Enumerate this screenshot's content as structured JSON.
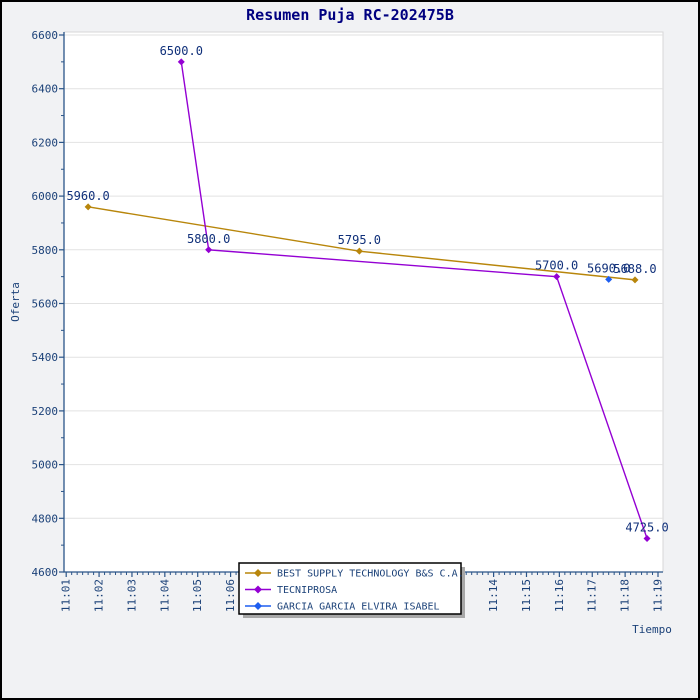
{
  "colors": {
    "background": "#f1f2f4",
    "plot_background": "#ffffff",
    "plot_border": "#d7d7d7",
    "grid": "#e2e2e2",
    "axis": "#2a5488",
    "tick_text": "#1b4178",
    "data_label_text": "#10307a",
    "title_text": "#000080",
    "legend_border": "#000000",
    "legend_shadow": "#a8a8a8"
  },
  "chart_data": {
    "type": "line",
    "title": "Resumen Puja RC-202475B",
    "xlabel": "Tiempo",
    "ylabel": "Oferta",
    "ylim": [
      4600,
      6600
    ],
    "y_tick_step": 200,
    "y_minor_step": 100,
    "grid": "horizontal",
    "legend_position": "bottom-center",
    "x_ticks": [
      "11:01",
      "11:02",
      "11:03",
      "11:04",
      "11:05",
      "11:06",
      "11:07",
      "11:08",
      "11:09",
      "11:10",
      "11:11",
      "11:12",
      "11:13",
      "11:14",
      "11:15",
      "11:16",
      "11:17",
      "11:18",
      "11:19"
    ],
    "x_minor_seconds": 10,
    "series": [
      {
        "name": "BEST SUPPLY TECHNOLOGY B&S C.A.",
        "color": "#b8860b",
        "points": [
          {
            "time": "11:01:40",
            "value": 5960.0,
            "label": "5960.0"
          },
          {
            "time": "11:09:55",
            "value": 5795.0,
            "label": "5795.0"
          },
          {
            "time": "11:18:18",
            "value": 5688.0,
            "label": "5688.0"
          }
        ]
      },
      {
        "name": "TECNIPROSA",
        "color": "#9400d3",
        "points": [
          {
            "time": "11:04:30",
            "value": 6500.0,
            "label": "6500.0"
          },
          {
            "time": "11:05:20",
            "value": 5800.0,
            "label": "5800.0"
          },
          {
            "time": "11:15:55",
            "value": 5700.0,
            "label": "5700.0"
          },
          {
            "time": "11:18:40",
            "value": 4725.0,
            "label": "4725.0"
          }
        ]
      },
      {
        "name": "GARCIA GARCIA ELVIRA ISABEL",
        "color": "#1e5ef0",
        "points": [
          {
            "time": "11:17:30",
            "value": 5690.0,
            "label": "5690.0"
          }
        ]
      }
    ]
  }
}
